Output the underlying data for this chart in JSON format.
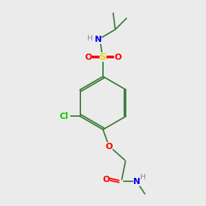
{
  "background_color": "#ebebeb",
  "fig_size": [
    3.0,
    3.0
  ],
  "dpi": 100,
  "bond_color": "#3a7d3a",
  "bond_lw": 1.4,
  "atom_colors": {
    "O": "#ff0000",
    "N": "#0000ee",
    "S": "#dddd00",
    "Cl": "#00cc00",
    "H": "#888888",
    "C": "#2a6a2a"
  },
  "font_size": 9,
  "font_size_s": 8
}
